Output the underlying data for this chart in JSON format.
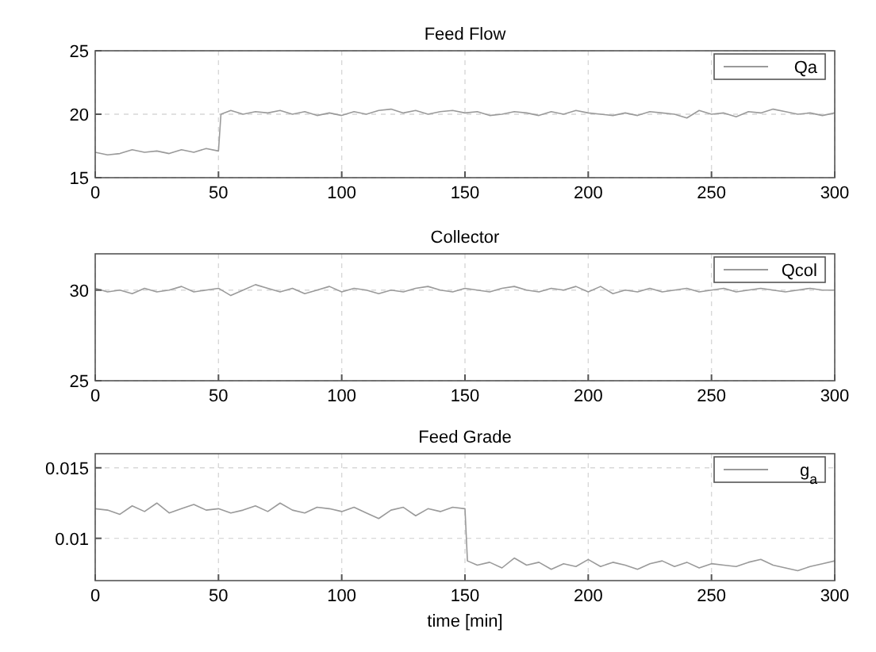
{
  "chart_data": [
    {
      "type": "line",
      "title": "Feed Flow",
      "xlim": [
        0,
        300
      ],
      "xticks": [
        0,
        50,
        100,
        150,
        200,
        250,
        300
      ],
      "ylim": [
        15,
        25
      ],
      "yticks": [
        15,
        20,
        25
      ],
      "grid": true,
      "legend": "top right",
      "series": [
        {
          "name": "Qa",
          "color": "#9a9a9a",
          "x": [
            0,
            5,
            10,
            15,
            20,
            25,
            30,
            35,
            40,
            45,
            50,
            51,
            55,
            60,
            65,
            70,
            75,
            80,
            85,
            90,
            95,
            100,
            105,
            110,
            115,
            120,
            125,
            130,
            135,
            140,
            145,
            150,
            155,
            160,
            165,
            170,
            175,
            180,
            185,
            190,
            195,
            200,
            205,
            210,
            215,
            220,
            225,
            230,
            235,
            240,
            245,
            250,
            255,
            260,
            265,
            270,
            275,
            280,
            285,
            290,
            295,
            300
          ],
          "values": [
            17.0,
            16.8,
            16.9,
            17.2,
            17.0,
            17.1,
            16.9,
            17.2,
            17.0,
            17.3,
            17.1,
            20.0,
            20.3,
            20.0,
            20.2,
            20.1,
            20.3,
            20.0,
            20.2,
            19.9,
            20.1,
            19.9,
            20.2,
            20.0,
            20.3,
            20.4,
            20.1,
            20.3,
            20.0,
            20.2,
            20.3,
            20.1,
            20.2,
            19.9,
            20.0,
            20.2,
            20.1,
            19.9,
            20.2,
            20.0,
            20.3,
            20.1,
            20.0,
            19.9,
            20.1,
            19.9,
            20.2,
            20.1,
            20.0,
            19.7,
            20.3,
            20.0,
            20.1,
            19.8,
            20.2,
            20.1,
            20.4,
            20.2,
            20.0,
            20.1,
            19.9,
            20.1
          ]
        }
      ]
    },
    {
      "type": "line",
      "title": "Collector",
      "xlim": [
        0,
        300
      ],
      "xticks": [
        0,
        50,
        100,
        150,
        200,
        250,
        300
      ],
      "ylim": [
        25,
        32
      ],
      "yticks": [
        25,
        30
      ],
      "grid": true,
      "legend": "top right",
      "series": [
        {
          "name": "Qcol",
          "color": "#9a9a9a",
          "x": [
            0,
            5,
            10,
            15,
            20,
            25,
            30,
            35,
            40,
            45,
            50,
            55,
            60,
            65,
            70,
            75,
            80,
            85,
            90,
            95,
            100,
            105,
            110,
            115,
            120,
            125,
            130,
            135,
            140,
            145,
            150,
            155,
            160,
            165,
            170,
            175,
            180,
            185,
            190,
            195,
            200,
            205,
            210,
            215,
            220,
            225,
            230,
            235,
            240,
            245,
            250,
            255,
            260,
            265,
            270,
            275,
            280,
            285,
            290,
            295,
            300
          ],
          "values": [
            30.1,
            29.9,
            30.0,
            29.8,
            30.1,
            29.9,
            30.0,
            30.2,
            29.9,
            30.0,
            30.1,
            29.7,
            30.0,
            30.3,
            30.1,
            29.9,
            30.1,
            29.8,
            30.0,
            30.2,
            29.9,
            30.1,
            30.0,
            29.8,
            30.0,
            29.9,
            30.1,
            30.2,
            30.0,
            29.9,
            30.1,
            30.0,
            29.9,
            30.1,
            30.2,
            30.0,
            29.9,
            30.1,
            30.0,
            30.2,
            29.9,
            30.2,
            29.8,
            30.0,
            29.9,
            30.1,
            29.9,
            30.0,
            30.1,
            29.9,
            30.0,
            30.1,
            29.9,
            30.0,
            30.1,
            30.0,
            29.9,
            30.0,
            30.1,
            30.0,
            30.0
          ]
        }
      ]
    },
    {
      "type": "line",
      "title": "Feed Grade",
      "xlabel": "time [min]",
      "xlim": [
        0,
        300
      ],
      "xticks": [
        0,
        50,
        100,
        150,
        200,
        250,
        300
      ],
      "ylim": [
        0.007,
        0.016
      ],
      "yticks": [
        0.01,
        0.015
      ],
      "grid": true,
      "legend": "top right",
      "series": [
        {
          "name": "g$_{a}$",
          "color": "#9a9a9a",
          "x": [
            0,
            5,
            10,
            15,
            20,
            25,
            30,
            35,
            40,
            45,
            50,
            55,
            60,
            65,
            70,
            75,
            80,
            85,
            90,
            95,
            100,
            105,
            110,
            115,
            120,
            125,
            130,
            135,
            140,
            145,
            150,
            151,
            155,
            160,
            165,
            170,
            175,
            180,
            185,
            190,
            195,
            200,
            205,
            210,
            215,
            220,
            225,
            230,
            235,
            240,
            245,
            250,
            255,
            260,
            265,
            270,
            275,
            280,
            285,
            290,
            295,
            300
          ],
          "values": [
            0.0121,
            0.012,
            0.0117,
            0.0123,
            0.0119,
            0.0125,
            0.0118,
            0.0121,
            0.0124,
            0.012,
            0.0121,
            0.0118,
            0.012,
            0.0123,
            0.0119,
            0.0125,
            0.012,
            0.0118,
            0.0122,
            0.0121,
            0.0119,
            0.0122,
            0.0118,
            0.0114,
            0.012,
            0.0122,
            0.0116,
            0.0121,
            0.0119,
            0.0122,
            0.0121,
            0.0084,
            0.0081,
            0.0083,
            0.0079,
            0.0086,
            0.0081,
            0.0083,
            0.0078,
            0.0082,
            0.008,
            0.0085,
            0.008,
            0.0083,
            0.0081,
            0.0078,
            0.0082,
            0.0084,
            0.008,
            0.0083,
            0.0079,
            0.0082,
            0.0081,
            0.008,
            0.0083,
            0.0085,
            0.0081,
            0.0079,
            0.0077,
            0.008,
            0.0082,
            0.0084
          ]
        }
      ]
    }
  ]
}
